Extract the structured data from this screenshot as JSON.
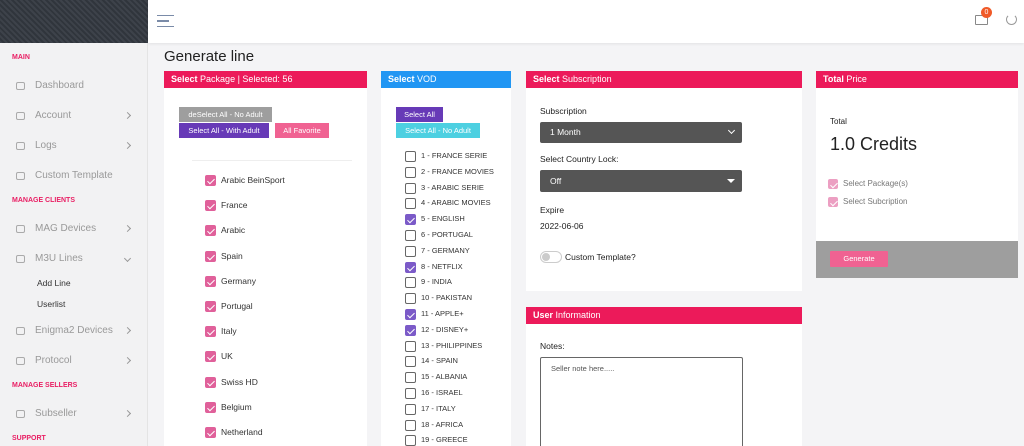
{
  "topbar": {
    "notification_count": 0
  },
  "sidebar": [
    {
      "kind": "section",
      "label": "MAIN"
    },
    {
      "kind": "item",
      "label": "Dashboard"
    },
    {
      "kind": "item",
      "label": "Account",
      "expandable": true
    },
    {
      "kind": "item",
      "label": "Logs",
      "expandable": true
    },
    {
      "kind": "item",
      "label": "Custom Template"
    },
    {
      "kind": "section",
      "label": "MANAGE CLIENTS"
    },
    {
      "kind": "item",
      "label": "MAG Devices",
      "expandable": true
    },
    {
      "kind": "item",
      "label": "M3U Lines",
      "expandable": true,
      "open": true
    },
    {
      "kind": "sub",
      "label": "Add Line"
    },
    {
      "kind": "sub",
      "label": "Userlist"
    },
    {
      "kind": "item",
      "label": "Enigma2 Devices",
      "expandable": true
    },
    {
      "kind": "item",
      "label": "Protocol",
      "expandable": true
    },
    {
      "kind": "section",
      "label": "MANAGE SELLERS"
    },
    {
      "kind": "item",
      "label": "Subseller",
      "expandable": true
    },
    {
      "kind": "section",
      "label": "SUPPORT"
    }
  ],
  "page_title": "Generate line",
  "package_card": {
    "header_bold": "Select",
    "header_rest": "Package | Selected: 56",
    "buttons": [
      "deSelect All - No Adult",
      "Select All - With Adult",
      "All Favorite"
    ],
    "packages": [
      {
        "label": "Arabic BeinSport",
        "checked": true
      },
      {
        "label": "France",
        "checked": true
      },
      {
        "label": "Arabic",
        "checked": true
      },
      {
        "label": "Spain",
        "checked": true
      },
      {
        "label": "Germany",
        "checked": true
      },
      {
        "label": "Portugal",
        "checked": true
      },
      {
        "label": "Italy",
        "checked": true
      },
      {
        "label": "UK",
        "checked": true
      },
      {
        "label": "Swiss HD",
        "checked": true
      },
      {
        "label": "Belgium",
        "checked": true
      },
      {
        "label": "Netherland",
        "checked": true
      }
    ]
  },
  "vod_card": {
    "header_bold": "Select",
    "header_rest": "VOD",
    "buttons": [
      "Select All",
      "Select All - No Adult"
    ],
    "items": [
      {
        "label": "1 - FRANCE SERIE",
        "checked": false
      },
      {
        "label": "2 - FRANCE MOVIES",
        "checked": false
      },
      {
        "label": "3 - ARABIC SERIE",
        "checked": false
      },
      {
        "label": "4 - ARABIC MOVIES",
        "checked": false
      },
      {
        "label": "5 - ENGLISH",
        "checked": true
      },
      {
        "label": "6 - PORTUGAL",
        "checked": false
      },
      {
        "label": "7 - GERMANY",
        "checked": false
      },
      {
        "label": "8 - NETFLIX",
        "checked": true
      },
      {
        "label": "9 - INDIA",
        "checked": false
      },
      {
        "label": "10 - PAKISTAN",
        "checked": false
      },
      {
        "label": "11 - APPLE+",
        "checked": true
      },
      {
        "label": "12 - DISNEY+",
        "checked": true
      },
      {
        "label": "13 - PHILIPPINES",
        "checked": false
      },
      {
        "label": "14 - SPAIN",
        "checked": false
      },
      {
        "label": "15 - ALBANIA",
        "checked": false
      },
      {
        "label": "16 - ISRAEL",
        "checked": false
      },
      {
        "label": "17 - ITALY",
        "checked": false
      },
      {
        "label": "18 - AFRICA",
        "checked": false
      },
      {
        "label": "19 - GREECE",
        "checked": false
      }
    ]
  },
  "subscription_card": {
    "header_bold": "Select",
    "header_rest": "Subscription",
    "subscription_label": "Subscription",
    "subscription_value": "1 Month",
    "country_lock_label": "Select Country Lock:",
    "country_lock_value": "Off",
    "expire_label": "Expire",
    "expire_value": "2022-06-06",
    "custom_template_label": "Custom Template?"
  },
  "user_card": {
    "header_bold": "User",
    "header_rest": "Information",
    "notes_label": "Notes:",
    "notes_placeholder": "Seller note here....."
  },
  "price_card": {
    "header_bold": "Total",
    "header_rest": "Price",
    "total_label": "Total",
    "total_value": "1.0 Credits",
    "checks": [
      "Select Package(s)",
      "Select Subcription"
    ],
    "button": "Generate"
  }
}
